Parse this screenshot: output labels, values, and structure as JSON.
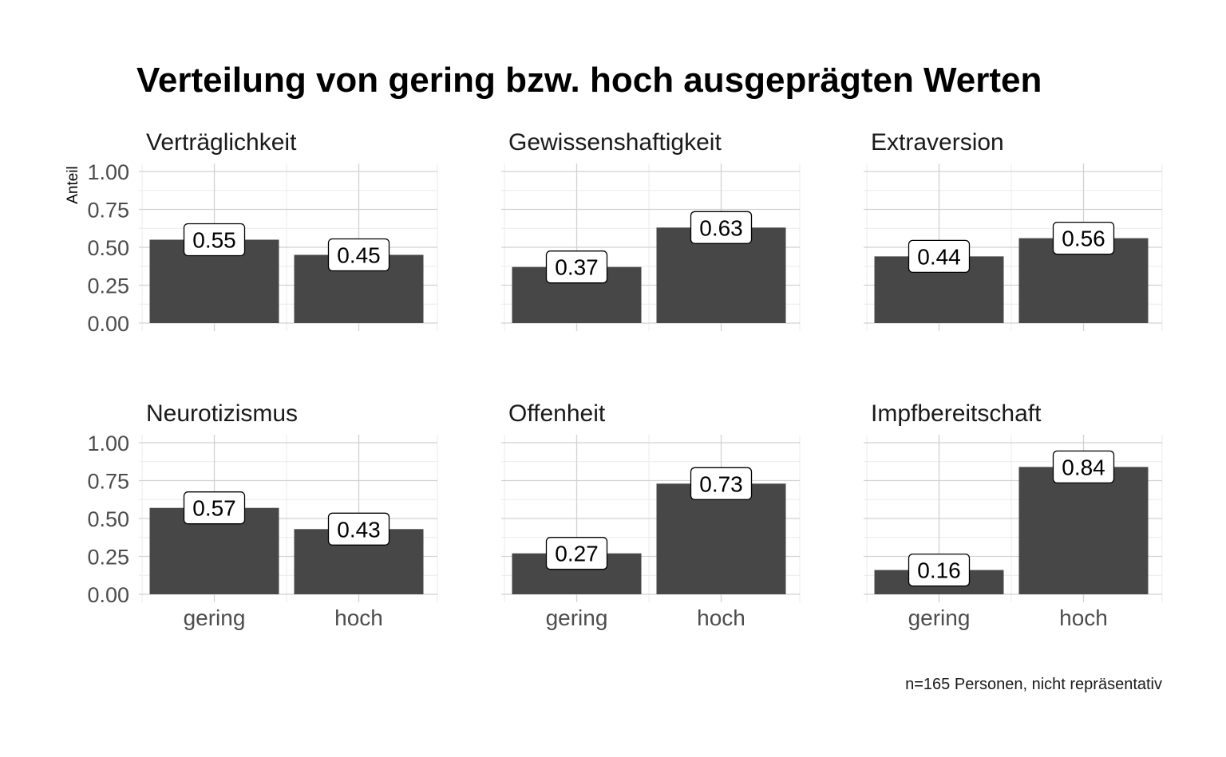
{
  "chart_data": {
    "type": "bar",
    "title": "Verteilung von gering bzw. hoch ausgeprägten Werten",
    "ylabel": "Anteil",
    "xlabel": "",
    "ylim": [
      0,
      1
    ],
    "yticks": [
      "0.00",
      "0.25",
      "0.50",
      "0.75",
      "1.00"
    ],
    "yticks_values": [
      0,
      0.25,
      0.5,
      0.75,
      1
    ],
    "categories": [
      "gering",
      "hoch"
    ],
    "caption": "n=165 Personen, nicht repräsentativ",
    "bar_color": "#474747",
    "grid": true,
    "facets": [
      {
        "name": "Verträglichkeit",
        "values": [
          0.55,
          0.45
        ],
        "labels": [
          "0.55",
          "0.45"
        ]
      },
      {
        "name": "Gewissenshaftigkeit",
        "values": [
          0.37,
          0.63
        ],
        "labels": [
          "0.37",
          "0.63"
        ]
      },
      {
        "name": "Extraversion",
        "values": [
          0.44,
          0.56
        ],
        "labels": [
          "0.44",
          "0.56"
        ]
      },
      {
        "name": "Neurotizismus",
        "values": [
          0.57,
          0.43
        ],
        "labels": [
          "0.57",
          "0.43"
        ]
      },
      {
        "name": "Offenheit",
        "values": [
          0.27,
          0.73
        ],
        "labels": [
          "0.27",
          "0.73"
        ]
      },
      {
        "name": "Impfbereitschaft",
        "values": [
          0.16,
          0.84
        ],
        "labels": [
          "0.16",
          "0.84"
        ]
      }
    ]
  }
}
